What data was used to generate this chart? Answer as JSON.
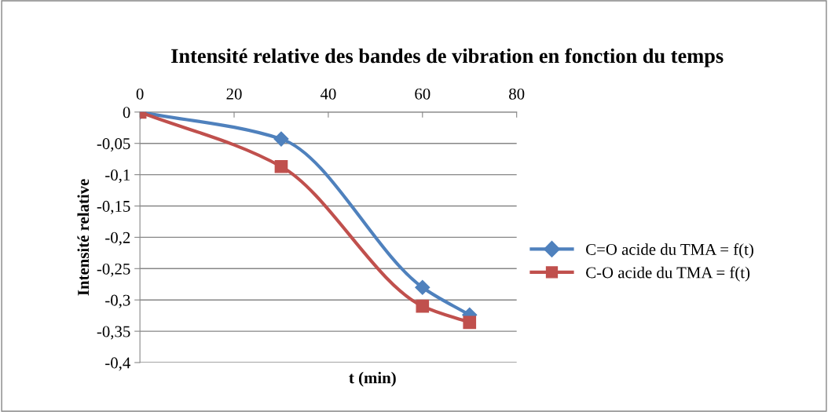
{
  "chart_data": {
    "type": "line",
    "title": "Intensité relative des bandes de vibration en fonction du temps",
    "xlabel": "t (min)",
    "ylabel": "Intensité relative",
    "x": [
      0,
      30,
      60,
      70
    ],
    "series": [
      {
        "name": "C=O acide du TMA = f(t)",
        "color": "#4f81bd",
        "marker": "diamond",
        "values": [
          0,
          -0.043,
          -0.28,
          -0.324
        ]
      },
      {
        "name": "C-O acide du TMA = f(t)",
        "color": "#c0504d",
        "marker": "square",
        "values": [
          0,
          -0.087,
          -0.31,
          -0.336
        ]
      }
    ],
    "xlim": [
      0,
      80
    ],
    "xticks": [
      0,
      20,
      40,
      60,
      80
    ],
    "ylim": [
      -0.4,
      0
    ],
    "yticks": [
      0,
      {
        "value": -0.05,
        "label": "-0,05"
      },
      {
        "value": -0.1,
        "label": "-0,1"
      },
      {
        "value": -0.15,
        "label": "-0,15"
      },
      {
        "value": -0.2,
        "label": "-0,2"
      },
      {
        "value": -0.25,
        "label": "-0,25"
      },
      {
        "value": -0.3,
        "label": "-0,3"
      },
      {
        "value": -0.35,
        "label": "-0,35"
      },
      {
        "value": -0.4,
        "label": "-0,4"
      }
    ],
    "grid": "y",
    "legend": "right",
    "line_style": "solid"
  }
}
